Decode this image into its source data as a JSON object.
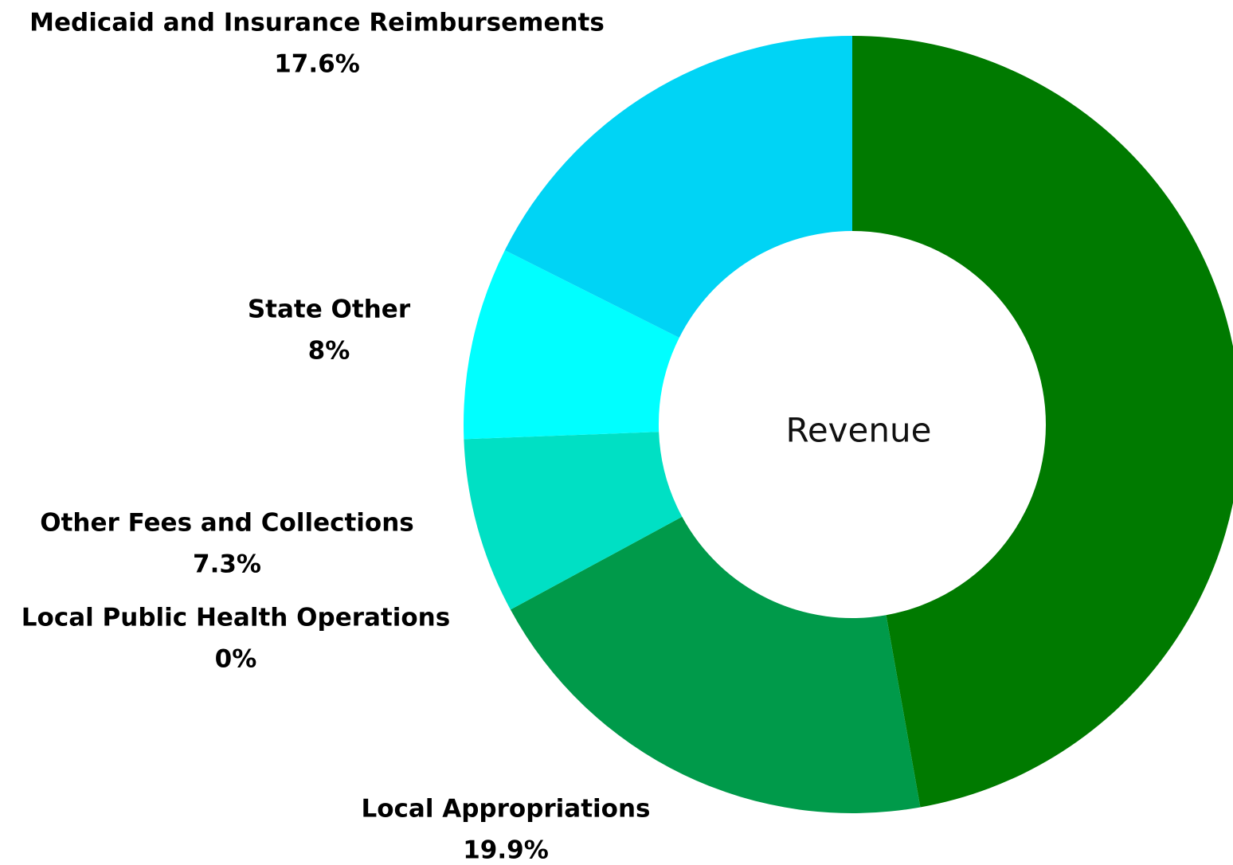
{
  "chart_data": {
    "type": "pie",
    "title": "Revenue",
    "categories": [
      null,
      "Local Appropriations",
      "Local Public Health Operations",
      "Other Fees and Collections",
      "State Other",
      "Medicaid and Insurance Reimbursements"
    ],
    "values": [
      47.2,
      19.9,
      0,
      7.3,
      8,
      17.6
    ],
    "value_labels": [
      null,
      "19.9%",
      "0%",
      "7.3%",
      "8%",
      "17.6%"
    ],
    "colors": [
      "#007a00",
      "#009a4a",
      "#00b080",
      "#00e0c4",
      "#00ffff",
      "#00d4f5"
    ]
  }
}
